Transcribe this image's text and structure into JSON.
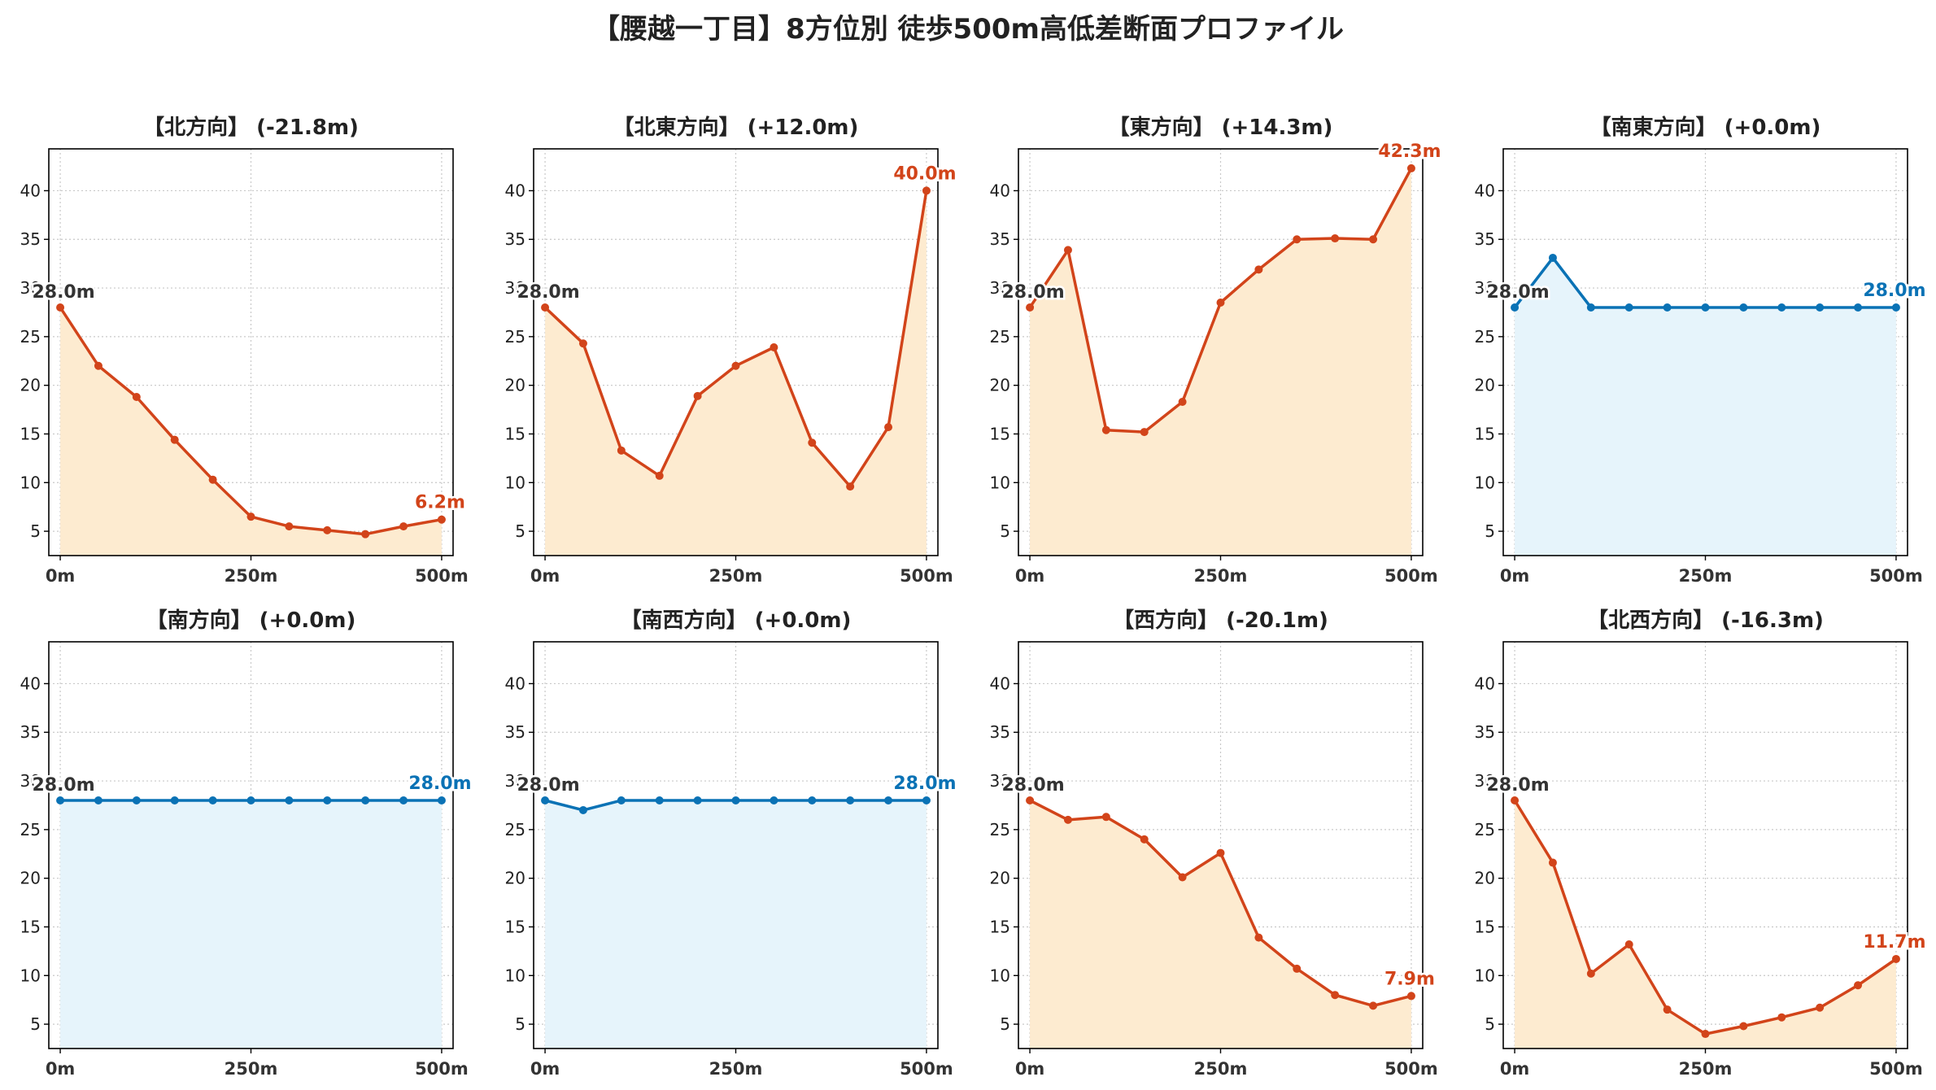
{
  "figure": {
    "title": "【腰越一丁目】8方位別 徒歩500m高低差断面プロファイル"
  },
  "colors": {
    "up": "#d2441a",
    "flat": "#0a72b5",
    "fill_up": "#fdebd0",
    "fill_flat": "#e6f4fb",
    "grid": "#c8c8c8",
    "text": "#333333"
  },
  "chart_data": [
    {
      "type": "area",
      "title": "【北方向】 (-21.8m)",
      "x": [
        0,
        50,
        100,
        150,
        200,
        250,
        300,
        350,
        400,
        450,
        500
      ],
      "values": [
        28.0,
        22.0,
        18.8,
        14.4,
        10.3,
        6.5,
        5.5,
        5.1,
        4.7,
        5.5,
        6.2
      ],
      "start_label": "28.0m",
      "end_label": "6.2m",
      "color_key": "up",
      "xlim": [
        -15,
        515
      ],
      "ylim": [
        2.5,
        44.3
      ],
      "xticks": [
        0,
        250,
        500
      ],
      "xtick_labels": [
        "0m",
        "250m",
        "500m"
      ],
      "yticks": [
        5,
        10,
        15,
        20,
        25,
        30,
        35,
        40
      ],
      "ytick_labels": [
        "5",
        "10",
        "15",
        "20",
        "25",
        "30",
        "35",
        "40"
      ],
      "grid": true
    },
    {
      "type": "area",
      "title": "【北東方向】 (+12.0m)",
      "x": [
        0,
        50,
        100,
        150,
        200,
        250,
        300,
        350,
        400,
        450,
        500
      ],
      "values": [
        28.0,
        24.3,
        13.3,
        10.7,
        18.9,
        22.0,
        23.9,
        14.1,
        9.6,
        15.7,
        40.0
      ],
      "start_label": "28.0m",
      "end_label": "40.0m",
      "color_key": "up",
      "xlim": [
        -15,
        515
      ],
      "ylim": [
        2.5,
        44.3
      ],
      "xticks": [
        0,
        250,
        500
      ],
      "xtick_labels": [
        "0m",
        "250m",
        "500m"
      ],
      "yticks": [
        5,
        10,
        15,
        20,
        25,
        30,
        35,
        40
      ],
      "ytick_labels": [
        "5",
        "10",
        "15",
        "20",
        "25",
        "30",
        "35",
        "40"
      ],
      "grid": true
    },
    {
      "type": "area",
      "title": "【東方向】 (+14.3m)",
      "x": [
        0,
        50,
        100,
        150,
        200,
        250,
        300,
        350,
        400,
        450,
        500
      ],
      "values": [
        28.0,
        33.9,
        15.4,
        15.2,
        18.3,
        28.5,
        31.9,
        35.0,
        35.1,
        35.0,
        42.3
      ],
      "start_label": "28.0m",
      "end_label": "42.3m",
      "color_key": "up",
      "xlim": [
        -15,
        515
      ],
      "ylim": [
        2.5,
        44.3
      ],
      "xticks": [
        0,
        250,
        500
      ],
      "xtick_labels": [
        "0m",
        "250m",
        "500m"
      ],
      "yticks": [
        5,
        10,
        15,
        20,
        25,
        30,
        35,
        40
      ],
      "ytick_labels": [
        "5",
        "10",
        "15",
        "20",
        "25",
        "30",
        "35",
        "40"
      ],
      "grid": true
    },
    {
      "type": "area",
      "title": "【南東方向】 (+0.0m)",
      "x": [
        0,
        50,
        100,
        150,
        200,
        250,
        300,
        350,
        400,
        450,
        500
      ],
      "values": [
        28.0,
        33.1,
        28.0,
        28.0,
        28.0,
        28.0,
        28.0,
        28.0,
        28.0,
        28.0,
        28.0
      ],
      "start_label": "28.0m",
      "end_label": "28.0m",
      "color_key": "flat",
      "xlim": [
        -15,
        515
      ],
      "ylim": [
        2.5,
        44.3
      ],
      "xticks": [
        0,
        250,
        500
      ],
      "xtick_labels": [
        "0m",
        "250m",
        "500m"
      ],
      "yticks": [
        5,
        10,
        15,
        20,
        25,
        30,
        35,
        40
      ],
      "ytick_labels": [
        "5",
        "10",
        "15",
        "20",
        "25",
        "30",
        "35",
        "40"
      ],
      "grid": true
    },
    {
      "type": "area",
      "title": "【南方向】 (+0.0m)",
      "x": [
        0,
        50,
        100,
        150,
        200,
        250,
        300,
        350,
        400,
        450,
        500
      ],
      "values": [
        28.0,
        28.0,
        28.0,
        28.0,
        28.0,
        28.0,
        28.0,
        28.0,
        28.0,
        28.0,
        28.0
      ],
      "start_label": "28.0m",
      "end_label": "28.0m",
      "color_key": "flat",
      "xlim": [
        -15,
        515
      ],
      "ylim": [
        2.5,
        44.3
      ],
      "xticks": [
        0,
        250,
        500
      ],
      "xtick_labels": [
        "0m",
        "250m",
        "500m"
      ],
      "yticks": [
        5,
        10,
        15,
        20,
        25,
        30,
        35,
        40
      ],
      "ytick_labels": [
        "5",
        "10",
        "15",
        "20",
        "25",
        "30",
        "35",
        "40"
      ],
      "grid": true
    },
    {
      "type": "area",
      "title": "【南西方向】 (+0.0m)",
      "x": [
        0,
        50,
        100,
        150,
        200,
        250,
        300,
        350,
        400,
        450,
        500
      ],
      "values": [
        28.0,
        27.0,
        28.0,
        28.0,
        28.0,
        28.0,
        28.0,
        28.0,
        28.0,
        28.0,
        28.0
      ],
      "start_label": "28.0m",
      "end_label": "28.0m",
      "color_key": "flat",
      "xlim": [
        -15,
        515
      ],
      "ylim": [
        2.5,
        44.3
      ],
      "xticks": [
        0,
        250,
        500
      ],
      "xtick_labels": [
        "0m",
        "250m",
        "500m"
      ],
      "yticks": [
        5,
        10,
        15,
        20,
        25,
        30,
        35,
        40
      ],
      "ytick_labels": [
        "5",
        "10",
        "15",
        "20",
        "25",
        "30",
        "35",
        "40"
      ],
      "grid": true
    },
    {
      "type": "area",
      "title": "【西方向】 (-20.1m)",
      "x": [
        0,
        50,
        100,
        150,
        200,
        250,
        300,
        350,
        400,
        450,
        500
      ],
      "values": [
        28.0,
        26.0,
        26.3,
        24.0,
        20.1,
        22.6,
        13.9,
        10.7,
        8.0,
        6.9,
        7.9
      ],
      "start_label": "28.0m",
      "end_label": "7.9m",
      "color_key": "up",
      "xlim": [
        -15,
        515
      ],
      "ylim": [
        2.5,
        44.3
      ],
      "xticks": [
        0,
        250,
        500
      ],
      "xtick_labels": [
        "0m",
        "250m",
        "500m"
      ],
      "yticks": [
        5,
        10,
        15,
        20,
        25,
        30,
        35,
        40
      ],
      "ytick_labels": [
        "5",
        "10",
        "15",
        "20",
        "25",
        "30",
        "35",
        "40"
      ],
      "grid": true
    },
    {
      "type": "area",
      "title": "【北西方向】 (-16.3m)",
      "x": [
        0,
        50,
        100,
        150,
        200,
        250,
        300,
        350,
        400,
        450,
        500
      ],
      "values": [
        28.0,
        21.6,
        10.2,
        13.2,
        6.5,
        4.0,
        4.8,
        5.7,
        6.7,
        9.0,
        11.7
      ],
      "start_label": "28.0m",
      "end_label": "11.7m",
      "color_key": "up",
      "xlim": [
        -15,
        515
      ],
      "ylim": [
        2.5,
        44.3
      ],
      "xticks": [
        0,
        250,
        500
      ],
      "xtick_labels": [
        "0m",
        "250m",
        "500m"
      ],
      "yticks": [
        5,
        10,
        15,
        20,
        25,
        30,
        35,
        40
      ],
      "ytick_labels": [
        "5",
        "10",
        "15",
        "20",
        "25",
        "30",
        "35",
        "40"
      ],
      "grid": true
    }
  ]
}
